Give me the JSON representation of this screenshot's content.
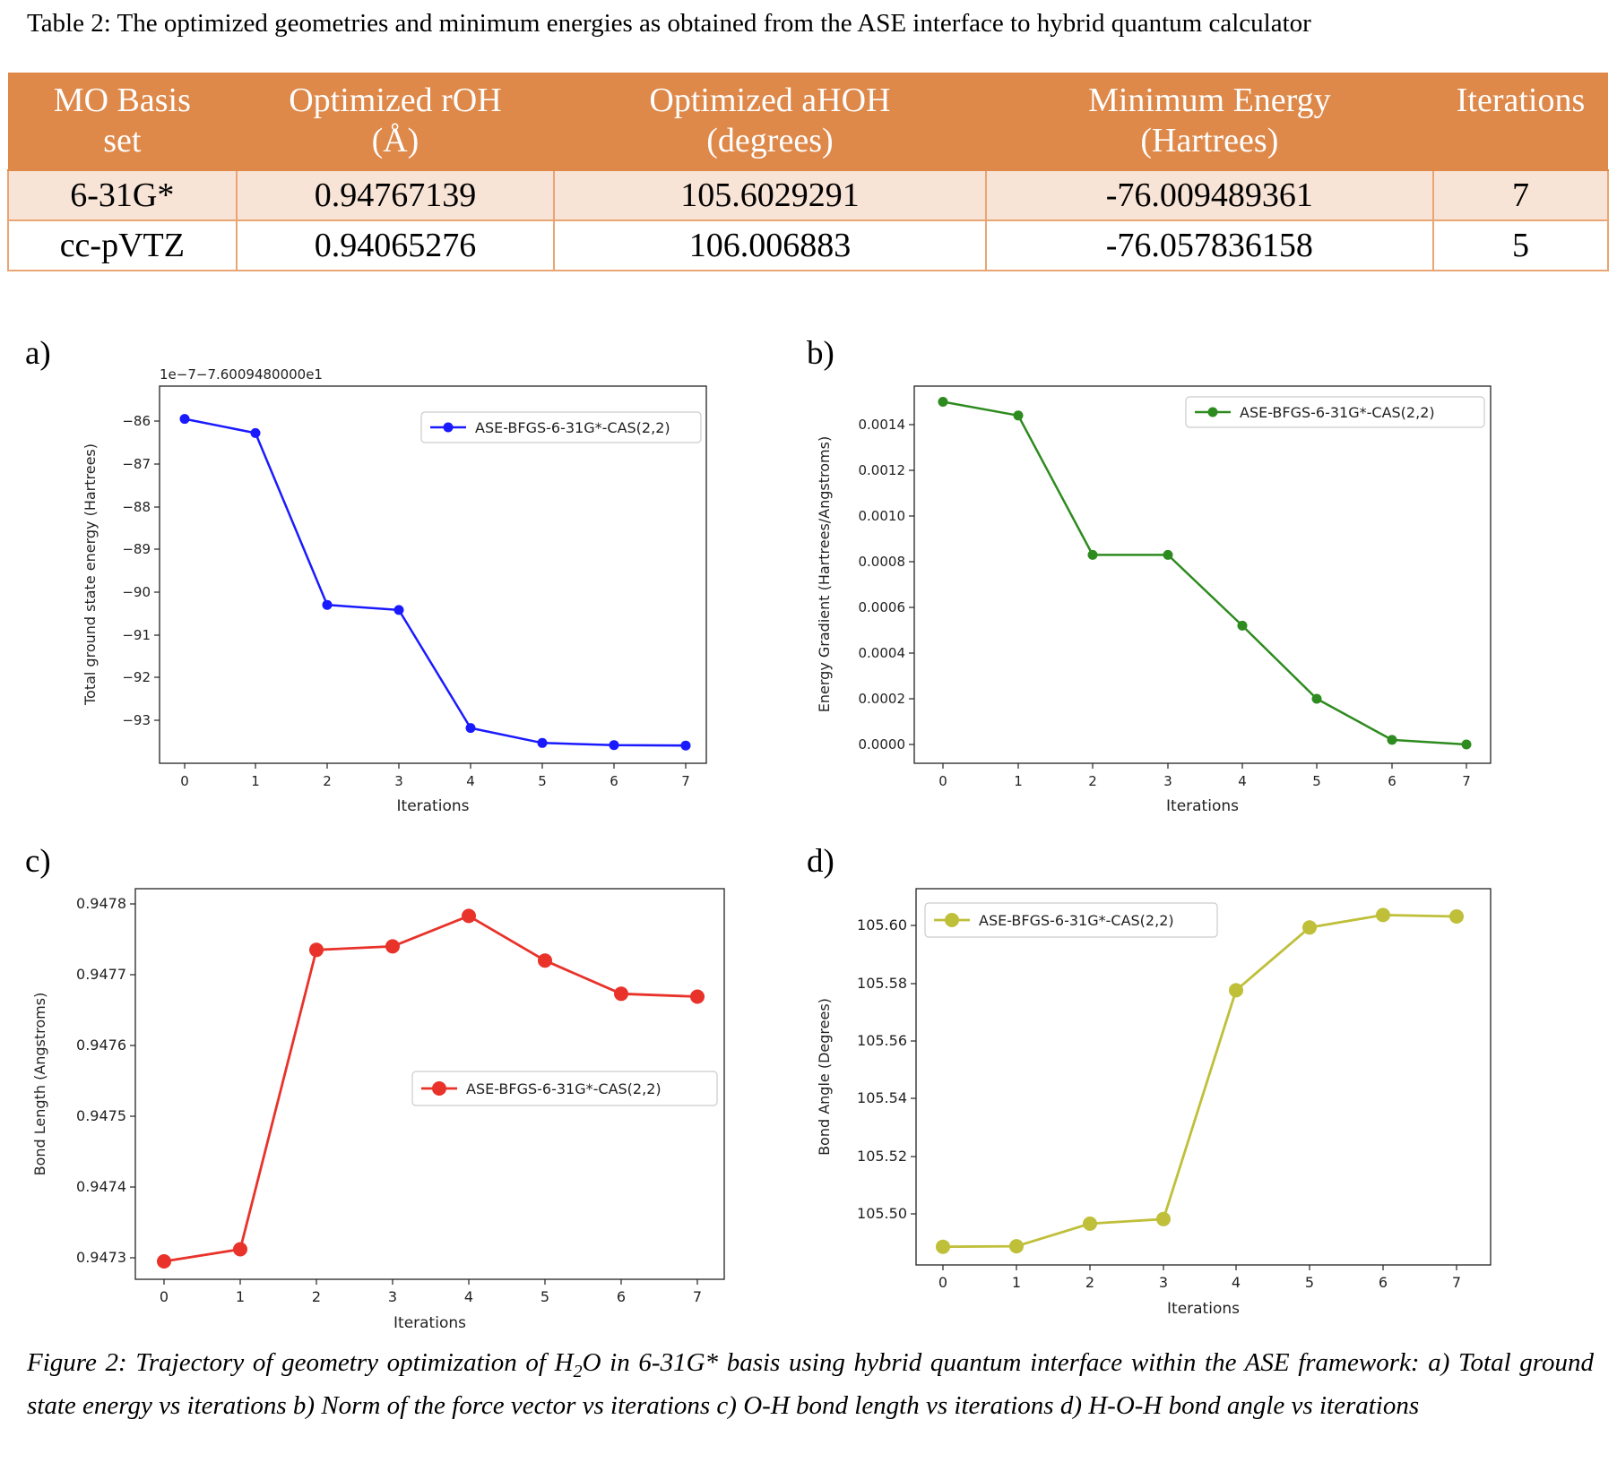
{
  "table_caption": "Table 2: The optimized geometries and minimum energies as obtained from the ASE interface to hybrid quantum calculator",
  "table": {
    "headers": [
      [
        "MO Basis",
        "set"
      ],
      [
        "Optimized rOH",
        "(Å)"
      ],
      [
        "Optimized aHOH",
        "(degrees)"
      ],
      [
        "Minimum Energy",
        "(Hartrees)"
      ],
      [
        "Iterations",
        ""
      ]
    ],
    "rows": [
      [
        "6-31G*",
        "0.94767139",
        "105.6029291",
        "-76.009489361",
        "7"
      ],
      [
        "cc-pVTZ",
        "0.94065276",
        "106.006883",
        "-76.057836158",
        "5"
      ]
    ],
    "colors": {
      "header_bg": "#de8849",
      "header_text": "#ffffff",
      "row_odd_bg": "#f8e4d6",
      "border": "#e9a574"
    }
  },
  "chart_data": [
    {
      "type": "line",
      "panel_label": "a)",
      "x": [
        0,
        1,
        2,
        3,
        4,
        5,
        6,
        7
      ],
      "series": [
        {
          "name": "ASE-BFGS-6-31G*-CAS(2,2)",
          "values": [
            -85.95,
            -86.28,
            -90.3,
            -90.42,
            -93.18,
            -93.53,
            -93.58,
            -93.59
          ],
          "color": "#1a1aff"
        }
      ],
      "xlabel": "Iterations",
      "ylabel": "Total ground state energy (Hartrees)",
      "offset_text": "1e−7−7.6009480000e1",
      "xticks": [
        "0",
        "1",
        "2",
        "3",
        "4",
        "5",
        "6",
        "7"
      ],
      "yticks": [
        "−86",
        "−87",
        "−88",
        "−89",
        "−90",
        "−91",
        "−92",
        "−93"
      ],
      "legend_position": "top-right"
    },
    {
      "type": "line",
      "panel_label": "b)",
      "x": [
        0,
        1,
        2,
        3,
        4,
        5,
        6,
        7
      ],
      "series": [
        {
          "name": "ASE-BFGS-6-31G*-CAS(2,2)",
          "values": [
            0.0015,
            0.00144,
            0.00083,
            0.00083,
            0.00052,
            0.0002,
            2e-05,
            0.0
          ],
          "color": "#2e8b1f"
        }
      ],
      "xlabel": "Iterations",
      "ylabel": "Energy Gradient (Hartrees/Angstroms)",
      "xticks": [
        "0",
        "1",
        "2",
        "3",
        "4",
        "5",
        "6",
        "7"
      ],
      "yticks": [
        "0.0000",
        "0.0002",
        "0.0004",
        "0.0006",
        "0.0008",
        "0.0010",
        "0.0012",
        "0.0014"
      ],
      "legend_position": "top-right"
    },
    {
      "type": "line",
      "panel_label": "c)",
      "x": [
        0,
        1,
        2,
        3,
        4,
        5,
        6,
        7
      ],
      "series": [
        {
          "name": "ASE-BFGS-6-31G*-CAS(2,2)",
          "values": [
            0.947295,
            0.947312,
            0.947735,
            0.94774,
            0.947783,
            0.94772,
            0.947673,
            0.947669
          ],
          "color": "#e8322a"
        }
      ],
      "xlabel": "Iterations",
      "ylabel": "Bond Length (Angstroms)",
      "xticks": [
        "0",
        "1",
        "2",
        "3",
        "4",
        "5",
        "6",
        "7"
      ],
      "yticks": [
        "0.9473",
        "0.9474",
        "0.9475",
        "0.9476",
        "0.9477",
        "0.9478"
      ],
      "legend_position": "center-right"
    },
    {
      "type": "line",
      "panel_label": "d)",
      "x": [
        0,
        1,
        2,
        3,
        4,
        5,
        6,
        7
      ],
      "series": [
        {
          "name": "ASE-BFGS-6-31G*-CAS(2,2)",
          "values": [
            105.4886,
            105.4888,
            105.4966,
            105.4982,
            105.5775,
            105.5993,
            105.6036,
            105.6031
          ],
          "color": "#bfbf3a"
        }
      ],
      "xlabel": "Iterations",
      "ylabel": "Bond Angle (Degrees)",
      "xticks": [
        "0",
        "1",
        "2",
        "3",
        "4",
        "5",
        "6",
        "7"
      ],
      "yticks": [
        "105.50",
        "105.52",
        "105.54",
        "105.56",
        "105.58",
        "105.60"
      ],
      "legend_position": "top-left"
    }
  ],
  "figure_caption": {
    "prefix": "Figure 2: Trajectory of geometry optimization of H",
    "subscript": "2",
    "suffix": "O in 6-31G* basis using hybrid quantum interface within the ASE framework: a) Total ground state energy vs iterations b) Norm of the force vector vs iterations c) O-H bond length vs iterations d) H-O-H bond angle vs iterations"
  }
}
